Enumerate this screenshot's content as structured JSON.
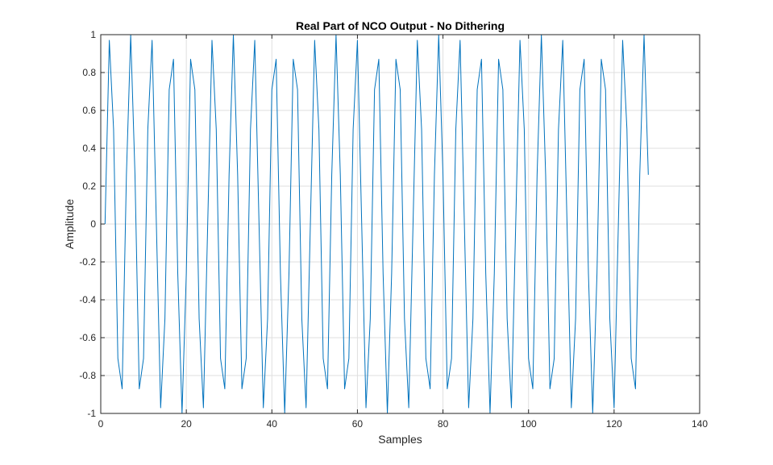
{
  "chart_data": {
    "type": "line",
    "title": "Real Part of NCO Output - No Dithering",
    "xlabel": "Samples",
    "ylabel": "Amplitude",
    "xlim": [
      0,
      140
    ],
    "ylim": [
      -1,
      1
    ],
    "xticks": [
      0,
      20,
      40,
      60,
      80,
      100,
      120,
      140
    ],
    "yticks": [
      -1,
      -0.8,
      -0.6,
      -0.4,
      -0.2,
      0,
      0.2,
      0.4,
      0.6,
      0.8,
      1
    ],
    "xtick_labels": [
      "0",
      "20",
      "40",
      "60",
      "80",
      "100",
      "120",
      "140"
    ],
    "ytick_labels": [
      "-1",
      "-0.8",
      "-0.6",
      "-0.4",
      "-0.2",
      "0",
      "0.2",
      "0.4",
      "0.6",
      "0.8",
      "1"
    ],
    "grid": true,
    "series": [
      {
        "color": "#0072BD",
        "x": [
          1,
          2,
          3,
          4,
          5,
          6,
          7,
          8,
          9,
          10,
          11,
          12,
          13,
          14,
          15,
          16,
          17,
          18,
          19,
          20,
          21,
          22,
          23,
          24,
          25,
          26,
          27,
          28,
          29,
          30,
          31,
          32,
          33,
          34,
          35,
          36,
          37,
          38,
          39,
          40,
          41,
          42,
          43,
          44,
          45,
          46,
          47,
          48,
          49,
          50,
          51,
          52,
          53,
          54,
          55,
          56,
          57,
          58,
          59,
          60,
          61,
          62,
          63,
          64,
          65,
          66,
          67,
          68,
          69,
          70,
          71,
          72,
          73,
          74,
          75,
          76,
          77,
          78,
          79,
          80,
          81,
          82,
          83,
          84,
          85,
          86,
          87,
          88,
          89,
          90,
          91,
          92,
          93,
          94,
          95,
          96,
          97,
          98,
          99,
          100,
          101,
          102,
          103,
          104,
          105,
          106,
          107,
          108,
          109,
          110,
          111,
          112,
          113,
          114,
          115,
          116,
          117,
          118,
          119,
          120,
          121,
          122,
          123,
          124,
          125,
          126,
          127,
          128
        ],
        "values": [
          0.0,
          0.97,
          0.5,
          -0.71,
          -0.87,
          0.26,
          1.0,
          0.26,
          -0.87,
          -0.71,
          0.5,
          0.97,
          0.0,
          -0.97,
          -0.5,
          0.71,
          0.87,
          -0.26,
          -1.0,
          -0.26,
          0.87,
          0.71,
          -0.5,
          -0.97,
          0.0,
          0.97,
          0.5,
          -0.71,
          -0.87,
          0.26,
          1.0,
          0.26,
          -0.87,
          -0.71,
          0.5,
          0.97,
          0.0,
          -0.97,
          -0.5,
          0.71,
          0.87,
          -0.26,
          -1.0,
          -0.26,
          0.87,
          0.71,
          -0.5,
          -0.97,
          0.0,
          0.97,
          0.5,
          -0.71,
          -0.87,
          0.26,
          1.0,
          0.26,
          -0.87,
          -0.71,
          0.5,
          0.97,
          0.0,
          -0.97,
          -0.5,
          0.71,
          0.87,
          -0.26,
          -1.0,
          -0.26,
          0.87,
          0.71,
          -0.5,
          -0.97,
          0.0,
          0.97,
          0.5,
          -0.71,
          -0.87,
          0.26,
          1.0,
          0.26,
          -0.87,
          -0.71,
          0.5,
          0.97,
          0.0,
          -0.97,
          -0.5,
          0.71,
          0.87,
          -0.26,
          -1.0,
          -0.26,
          0.87,
          0.71,
          -0.5,
          -0.97,
          0.0,
          0.97,
          0.5,
          -0.71,
          -0.87,
          0.26,
          1.0,
          0.26,
          -0.87,
          -0.71,
          0.5,
          0.97,
          0.0,
          -0.97,
          -0.5,
          0.71,
          0.87,
          -0.26,
          -1.0,
          -0.26,
          0.87,
          0.71,
          -0.5,
          -0.97,
          0.0,
          0.97,
          0.5,
          -0.71,
          -0.87,
          0.26,
          1.0,
          0.26
        ]
      }
    ]
  }
}
